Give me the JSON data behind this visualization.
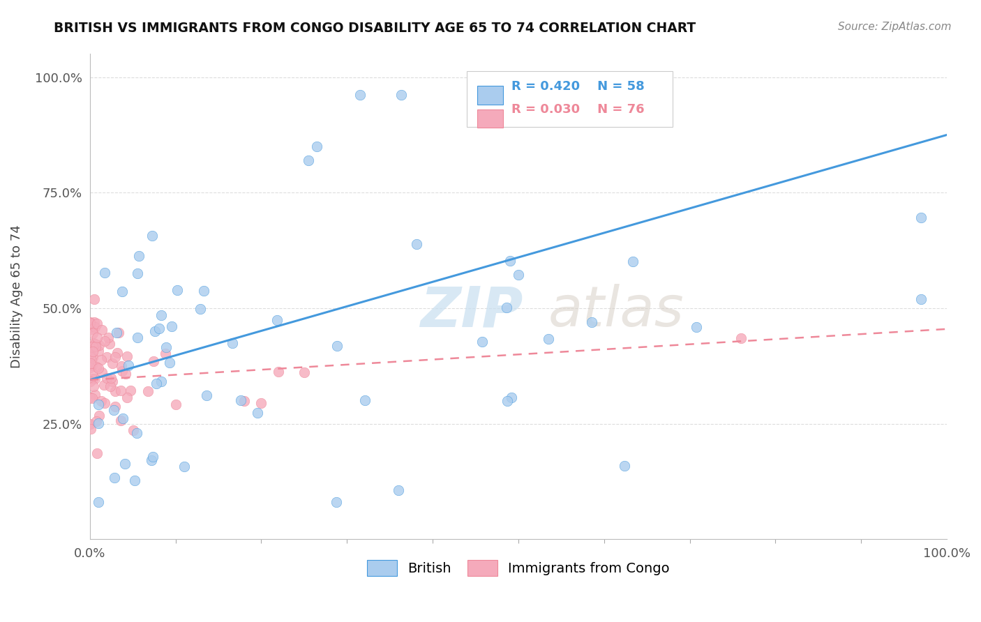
{
  "title": "BRITISH VS IMMIGRANTS FROM CONGO DISABILITY AGE 65 TO 74 CORRELATION CHART",
  "source": "Source: ZipAtlas.com",
  "ylabel": "Disability Age 65 to 74",
  "xlim": [
    0.0,
    1.0
  ],
  "ylim": [
    0.0,
    1.05
  ],
  "xtick_labels": [
    "0.0%",
    "100.0%"
  ],
  "ytick_labels": [
    "25.0%",
    "50.0%",
    "75.0%",
    "100.0%"
  ],
  "ytick_positions": [
    0.25,
    0.5,
    0.75,
    1.0
  ],
  "legend_r_british": "R = 0.420",
  "legend_n_british": "N = 58",
  "legend_r_congo": "R = 0.030",
  "legend_n_congo": "N = 76",
  "british_color": "#aaccee",
  "congo_color": "#f5aabb",
  "british_line_color": "#4499dd",
  "congo_line_color": "#ee8899",
  "watermark_zip": "ZIP",
  "watermark_atlas": "atlas",
  "background_color": "#ffffff",
  "grid_color": "#dddddd",
  "british_line_x0": 0.0,
  "british_line_y0": 0.345,
  "british_line_x1": 1.0,
  "british_line_y1": 0.875,
  "congo_line_x0": 0.0,
  "congo_line_y0": 0.345,
  "congo_line_x1": 1.0,
  "congo_line_y1": 0.455,
  "n_british": 58,
  "n_congo": 76
}
